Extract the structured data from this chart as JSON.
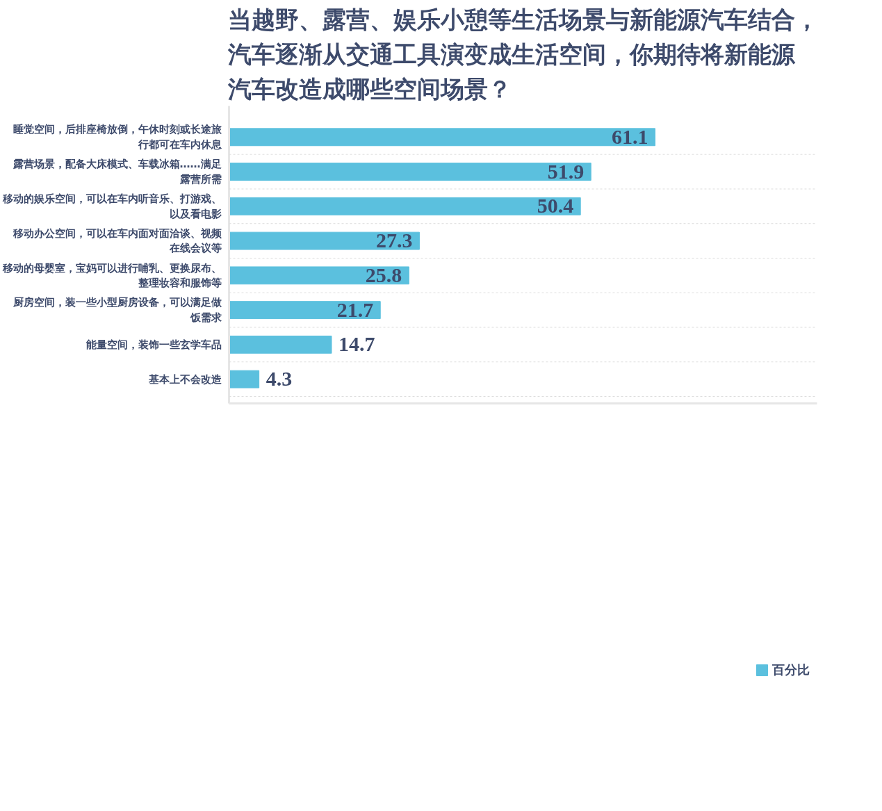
{
  "chart_data": {
    "type": "bar",
    "orientation": "horizontal",
    "title": "当越野、露营、娱乐小憩等生活场景与新能源汽车结合，汽车逐渐从交通工具演变成生活空间，你期待将新能源汽车改造成哪些空间场景？",
    "categories": [
      "睡觉空间，后排座椅放倒，午休时刻或长途旅行都可在车内休息",
      "露营场景，配备大床模式、车载冰箱……满足露营所需",
      "移动的娱乐空间，可以在车内听音乐、打游戏、以及看电影",
      "移动办公空间，可以在车内面对面洽谈、视频在线会议等",
      "移动的母婴室，宝妈可以进行哺乳、更换尿布、整理妆容和服饰等",
      "厨房空间，装一些小型厨房设备，可以满足做饭需求",
      "能量空间，装饰一些玄学车品",
      "基本上不会改造"
    ],
    "series": [
      {
        "name": "百分比",
        "color": "#5bc0de",
        "values": [
          61.1,
          51.9,
          50.4,
          27.3,
          25.8,
          21.7,
          14.7,
          4.3
        ]
      }
    ],
    "data_labels": true,
    "grid": "y",
    "legend": "bottom right"
  }
}
